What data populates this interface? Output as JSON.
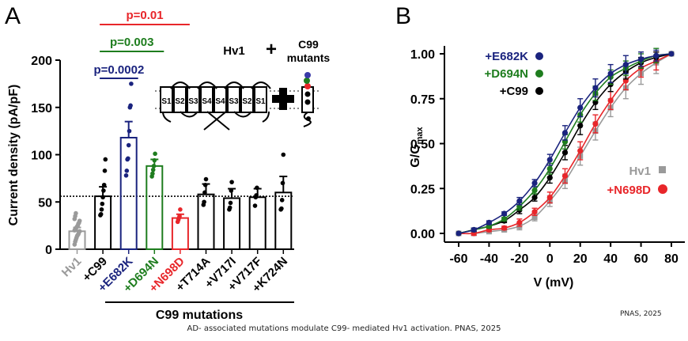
{
  "figure": {
    "caption": "AD- associated mutations modulate C99- mediated Hv1 activation. PNAS, 2025",
    "credit": "PNAS, 2025"
  },
  "chart_data": [
    {
      "panel_label": "A",
      "type": "bar",
      "ylabel": "Current density (pA/pF)",
      "xlabel": "C99 mutations",
      "ylim": [
        0,
        200
      ],
      "yticks": [
        "0",
        "50",
        "100",
        "150",
        "200"
      ],
      "ytick_values": [
        0,
        50,
        100,
        150,
        200
      ],
      "reference_line": 56,
      "inset_title": "Hv1",
      "inset_plus": "+",
      "inset_right_title": [
        "C99",
        "mutants"
      ],
      "inset_segments": [
        "S1",
        "S2",
        "S3",
        "S4",
        "S4",
        "S3",
        "S2",
        "S1"
      ],
      "categories": [
        "Hv1",
        "+C99",
        "+E682K",
        "+D694N",
        "+N698D",
        "+T714A",
        "+V717I",
        "+V717F",
        "+K724N"
      ],
      "colors": [
        "#9a9a9a",
        "#000000",
        "#1a237e",
        "#1e7d1e",
        "#e8262a",
        "#000000",
        "#000000",
        "#000000",
        "#000000"
      ],
      "values": [
        19,
        56,
        118,
        88,
        33,
        58,
        54,
        55,
        60
      ],
      "errors": [
        4,
        10,
        17,
        7,
        4,
        11,
        10,
        9,
        17
      ],
      "points": [
        [
          5,
          8,
          10,
          12,
          14,
          15,
          16,
          18,
          19,
          20,
          21,
          22,
          23,
          24,
          25,
          27,
          28,
          30,
          32,
          35,
          38
        ],
        [
          36,
          37,
          42,
          48,
          55,
          62,
          68,
          83,
          95
        ],
        [
          78,
          83,
          95,
          96,
          110,
          125,
          150,
          152,
          175
        ],
        [
          77,
          80,
          84,
          88,
          94,
          101
        ],
        [
          29,
          31,
          33,
          35,
          42
        ],
        [
          47,
          50,
          60,
          68,
          74
        ],
        [
          42,
          44,
          49,
          62,
          71
        ],
        [
          46,
          55,
          57,
          65
        ],
        [
          42,
          43,
          52,
          70,
          100
        ]
      ],
      "comparisons": [
        {
          "label": "p=0.0002",
          "from": "+C99",
          "to": "+E682K",
          "color": "#1a237e"
        },
        {
          "label": "p=0.003",
          "from": "+C99",
          "to": "+D694N",
          "color": "#1e7d1e"
        },
        {
          "label": "p=0.01",
          "from": "+C99",
          "to": "+N698D",
          "color": "#e8262a"
        }
      ]
    },
    {
      "panel_label": "B",
      "type": "line",
      "xlabel": "V (mV)",
      "ylabel": "G/G",
      "ylabel_sub": "max",
      "xlim": [
        -60,
        80
      ],
      "ylim": [
        0,
        1
      ],
      "xticks": [
        "-60",
        "-40",
        "-20",
        "0",
        "20",
        "40",
        "60",
        "80"
      ],
      "xtick_values": [
        -60,
        -40,
        -20,
        0,
        20,
        40,
        60,
        80
      ],
      "yticks": [
        "0.00",
        "0.25",
        "0.50",
        "0.75",
        "1.00"
      ],
      "ytick_values": [
        0,
        0.25,
        0.5,
        0.75,
        1.0
      ],
      "x": [
        -60,
        -50,
        -40,
        -30,
        -20,
        -10,
        0,
        10,
        20,
        30,
        40,
        50,
        60,
        70,
        80
      ],
      "series": [
        {
          "name": "+E682K",
          "color": "#1a237e",
          "marker": "circle",
          "legend": "top-left",
          "values": [
            0.0,
            0.02,
            0.06,
            0.11,
            0.18,
            0.28,
            0.41,
            0.56,
            0.7,
            0.81,
            0.89,
            0.94,
            0.97,
            0.99,
            1.0
          ],
          "errors": [
            0,
            0.01,
            0.01,
            0.01,
            0.02,
            0.02,
            0.03,
            0.04,
            0.05,
            0.05,
            0.05,
            0.05,
            0.04,
            0.03,
            0
          ]
        },
        {
          "name": "+D694N",
          "color": "#1e7d1e",
          "marker": "circle",
          "legend": "top-left",
          "values": [
            0.0,
            0.02,
            0.04,
            0.08,
            0.15,
            0.24,
            0.36,
            0.51,
            0.66,
            0.78,
            0.87,
            0.92,
            0.96,
            0.99,
            1.0
          ],
          "errors": [
            0,
            0.01,
            0.01,
            0.01,
            0.02,
            0.02,
            0.03,
            0.04,
            0.04,
            0.04,
            0.04,
            0.04,
            0.04,
            0.04,
            0
          ]
        },
        {
          "name": "+C99",
          "color": "#000000",
          "marker": "circle",
          "legend": "top-left",
          "values": [
            0.0,
            0.02,
            0.04,
            0.07,
            0.13,
            0.2,
            0.31,
            0.45,
            0.6,
            0.73,
            0.83,
            0.9,
            0.95,
            0.98,
            1.0
          ],
          "errors": [
            0,
            0.01,
            0.01,
            0.01,
            0.02,
            0.02,
            0.03,
            0.04,
            0.05,
            0.04,
            0.04,
            0.04,
            0.03,
            0.03,
            0
          ]
        },
        {
          "name": "Hv1",
          "color": "#9a9a9a",
          "marker": "square",
          "legend": "bottom-right",
          "values": [
            0.0,
            0.0,
            0.01,
            0.02,
            0.04,
            0.09,
            0.18,
            0.29,
            0.43,
            0.57,
            0.7,
            0.81,
            0.89,
            0.95,
            1.0
          ],
          "errors": [
            0,
            0.01,
            0.01,
            0.01,
            0.02,
            0.02,
            0.03,
            0.04,
            0.05,
            0.05,
            0.05,
            0.06,
            0.06,
            0.06,
            0
          ]
        },
        {
          "name": "+N698D",
          "color": "#e8262a",
          "marker": "circle",
          "legend": "bottom-right",
          "values": [
            0.0,
            0.0,
            0.02,
            0.03,
            0.06,
            0.12,
            0.2,
            0.32,
            0.46,
            0.61,
            0.74,
            0.85,
            0.92,
            0.96,
            1.0
          ],
          "errors": [
            0,
            0.01,
            0.01,
            0.01,
            0.02,
            0.02,
            0.03,
            0.04,
            0.05,
            0.05,
            0.05,
            0.05,
            0.05,
            0.05,
            0
          ]
        }
      ]
    }
  ]
}
